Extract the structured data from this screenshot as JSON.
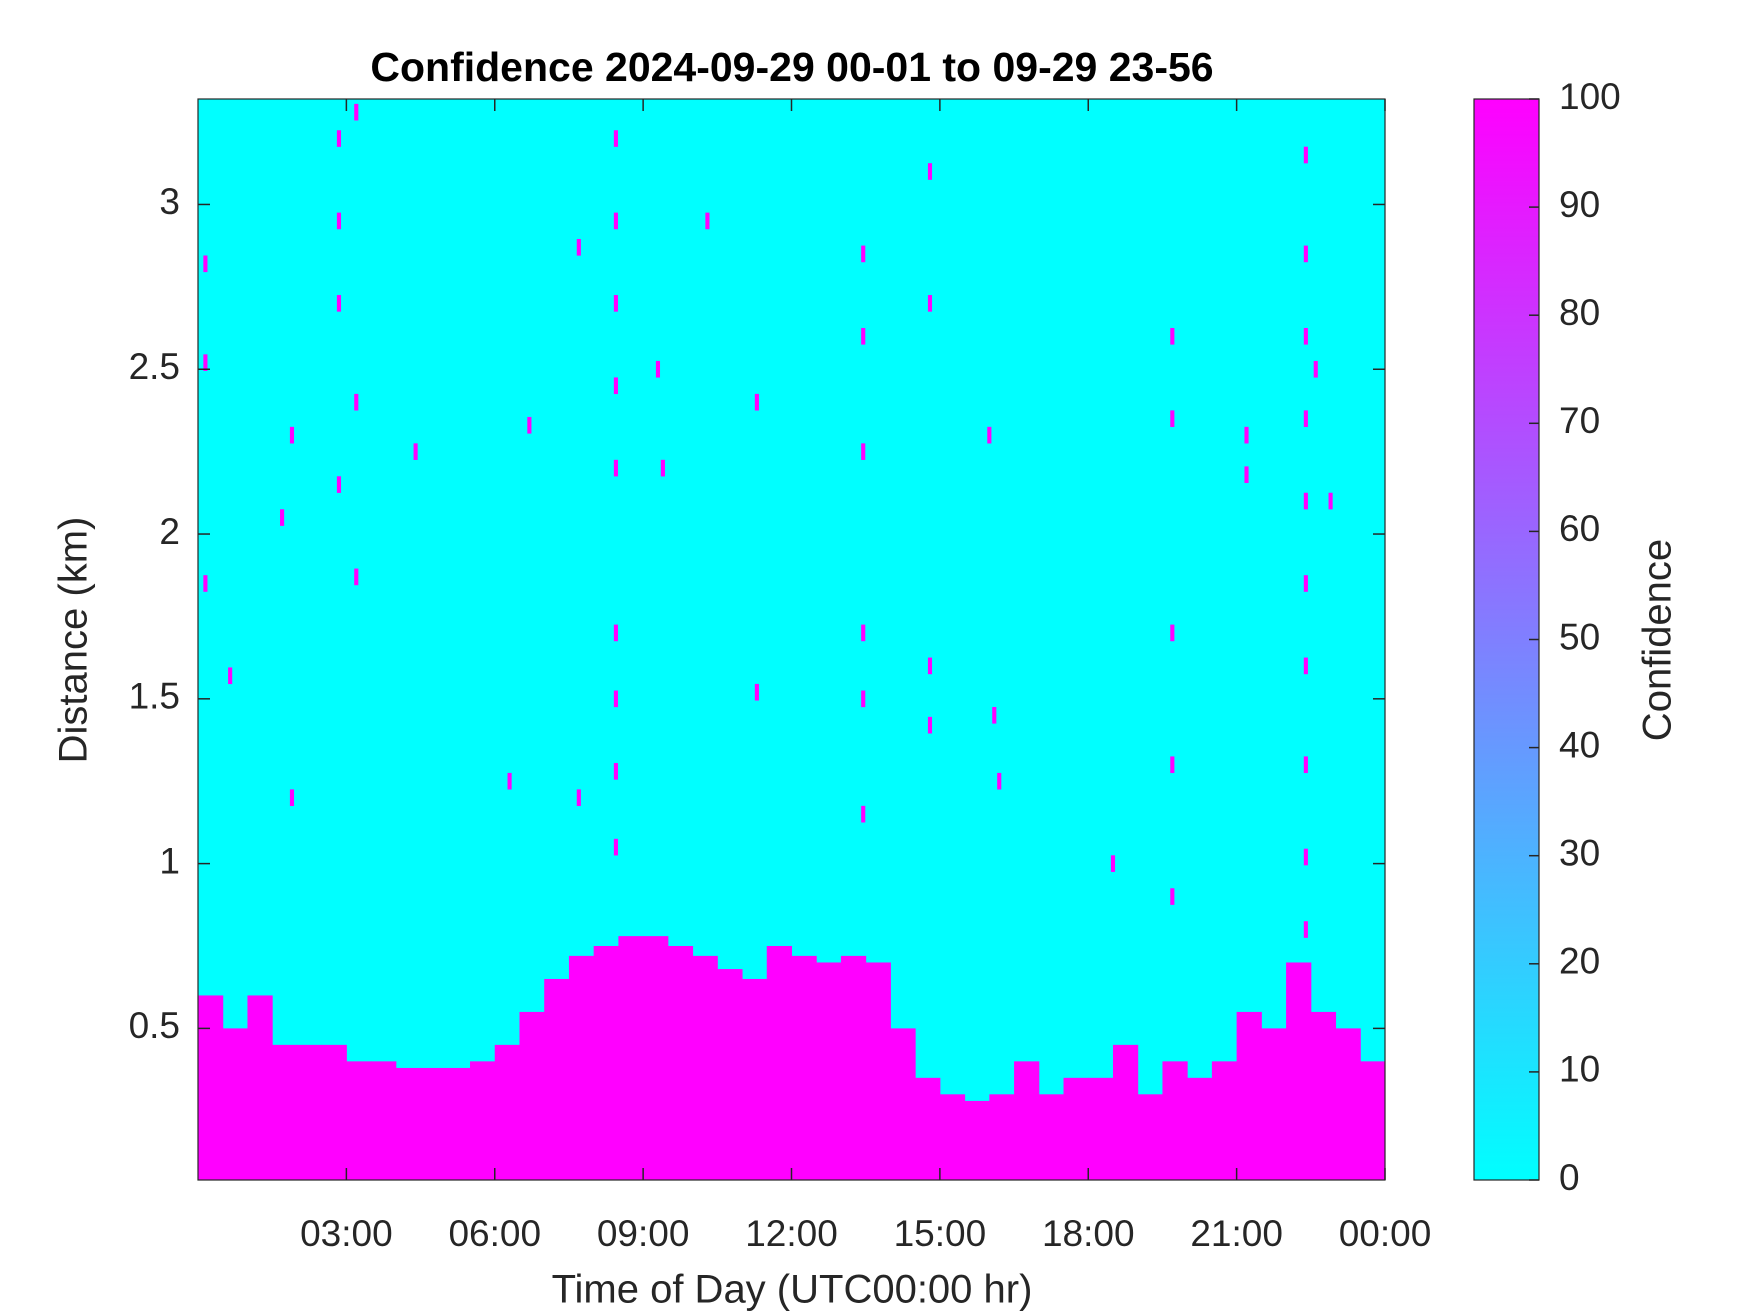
{
  "chart_data": {
    "type": "heatmap",
    "title": "Confidence 2024-09-29 00-01 to 09-29 23-56",
    "xlabel": "Time of Day (UTC00:00 hr)",
    "ylabel": "Distance (km)",
    "colorbar_label": "Confidence",
    "xlim": [
      0,
      24
    ],
    "ylim": [
      0.04,
      3.32
    ],
    "xticks": [
      {
        "value": 3,
        "label": "03:00"
      },
      {
        "value": 6,
        "label": "06:00"
      },
      {
        "value": 9,
        "label": "09:00"
      },
      {
        "value": 12,
        "label": "12:00"
      },
      {
        "value": 15,
        "label": "15:00"
      },
      {
        "value": 18,
        "label": "18:00"
      },
      {
        "value": 21,
        "label": "21:00"
      },
      {
        "value": 24,
        "label": "00:00"
      }
    ],
    "yticks": [
      0.5,
      1,
      1.5,
      2,
      2.5,
      3
    ],
    "clim": [
      0,
      100
    ],
    "cticks": [
      0,
      10,
      20,
      30,
      40,
      50,
      60,
      70,
      80,
      90,
      100
    ],
    "colormap": [
      "#00ffff",
      "#ff00ff"
    ],
    "bin_width": 0.5,
    "x": [
      0,
      0.5,
      1,
      1.5,
      2,
      2.5,
      3,
      3.5,
      4,
      4.5,
      5,
      5.5,
      6,
      6.5,
      7,
      7.5,
      8,
      8.5,
      9,
      9.5,
      10,
      10.5,
      11,
      11.5,
      12,
      12.5,
      13,
      13.5,
      14,
      14.5,
      15,
      15.5,
      16,
      16.5,
      17,
      17.5,
      18,
      18.5,
      19,
      19.5,
      20,
      20.5,
      21,
      21.5,
      22,
      22.5,
      23,
      23.5
    ],
    "values": [
      0.6,
      0.5,
      0.6,
      0.45,
      0.45,
      0.45,
      0.4,
      0.4,
      0.38,
      0.38,
      0.38,
      0.4,
      0.45,
      0.55,
      0.65,
      0.72,
      0.75,
      0.78,
      0.78,
      0.75,
      0.72,
      0.68,
      0.65,
      0.75,
      0.72,
      0.7,
      0.72,
      0.7,
      0.5,
      0.35,
      0.3,
      0.28,
      0.3,
      0.4,
      0.3,
      0.35,
      0.35,
      0.45,
      0.3,
      0.4,
      0.35,
      0.4,
      0.55,
      0.5,
      0.7,
      0.55,
      0.5,
      0.4
    ],
    "points": [
      [
        0.15,
        2.82
      ],
      [
        0.15,
        2.52
      ],
      [
        0.15,
        1.85
      ],
      [
        0.65,
        1.57
      ],
      [
        1.7,
        2.05
      ],
      [
        1.9,
        2.3
      ],
      [
        1.9,
        1.2
      ],
      [
        2.85,
        3.2
      ],
      [
        2.85,
        2.95
      ],
      [
        2.85,
        2.7
      ],
      [
        2.85,
        2.15
      ],
      [
        3.2,
        3.28
      ],
      [
        3.2,
        2.4
      ],
      [
        3.2,
        1.87
      ],
      [
        4.4,
        2.25
      ],
      [
        6.3,
        1.25
      ],
      [
        6.7,
        2.33
      ],
      [
        7.7,
        2.87
      ],
      [
        7.7,
        1.2
      ],
      [
        8.45,
        3.2
      ],
      [
        8.45,
        2.95
      ],
      [
        8.45,
        2.7
      ],
      [
        8.45,
        2.45
      ],
      [
        8.45,
        2.2
      ],
      [
        8.45,
        1.7
      ],
      [
        8.45,
        1.5
      ],
      [
        8.45,
        1.28
      ],
      [
        8.45,
        1.05
      ],
      [
        9.3,
        2.5
      ],
      [
        9.4,
        2.2
      ],
      [
        10.3,
        2.95
      ],
      [
        11.3,
        2.4
      ],
      [
        11.3,
        1.52
      ],
      [
        13.45,
        2.85
      ],
      [
        13.45,
        2.6
      ],
      [
        13.45,
        2.25
      ],
      [
        13.45,
        1.7
      ],
      [
        13.45,
        1.5
      ],
      [
        13.45,
        1.15
      ],
      [
        14.8,
        3.1
      ],
      [
        14.8,
        2.7
      ],
      [
        14.8,
        1.6
      ],
      [
        14.8,
        1.42
      ],
      [
        16.0,
        2.3
      ],
      [
        16.1,
        1.45
      ],
      [
        16.2,
        1.25
      ],
      [
        18.5,
        1.0
      ],
      [
        19.7,
        2.6
      ],
      [
        19.7,
        2.35
      ],
      [
        19.7,
        1.7
      ],
      [
        19.7,
        1.3
      ],
      [
        19.7,
        0.9
      ],
      [
        21.2,
        2.3
      ],
      [
        21.2,
        2.18
      ],
      [
        22.4,
        3.15
      ],
      [
        22.4,
        2.85
      ],
      [
        22.4,
        2.6
      ],
      [
        22.4,
        2.35
      ],
      [
        22.4,
        2.1
      ],
      [
        22.4,
        1.85
      ],
      [
        22.4,
        1.6
      ],
      [
        22.4,
        1.3
      ],
      [
        22.4,
        1.02
      ],
      [
        22.4,
        0.8
      ],
      [
        22.6,
        2.5
      ],
      [
        22.9,
        2.1
      ]
    ]
  }
}
